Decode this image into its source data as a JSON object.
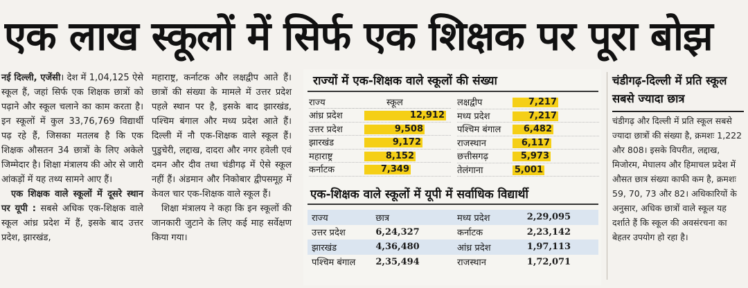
{
  "headline": "एक लाख स्कूलों में सिर्फ एक शिक्षक पर पूरा बोझ",
  "column1": {
    "dateline": "नई दिल्ली, एजेंसी",
    "para1": "। देश में 1,04,125 ऐसे स्कूल हैं, जहां सिर्फ एक शिक्षक छात्रों को पढ़ाने और स्कूल चलाने का काम करता है। इन स्कूलों में कुल 33,76,769 विद्यार्थी पढ़ रहे हैं, जिसका मतलब है कि एक शिक्षक औसतन 34 छात्रों के लिए अकेले जिम्मेदार है। शिक्षा मंत्रालय की ओर से जारी आंकड़ों में यह तथ्य सामने आए हैं।",
    "subhead": "एक शिक्षक वाले स्कूलों में दूसरे स्थान पर यूपी :",
    "para2": "सबसे अधिक एक-शिक्षक वाले स्कूल आंध्र प्रदेश में हैं, इसके बाद उत्तर प्रदेश, झारखंड,"
  },
  "column2": {
    "para1": "महाराष्ट्र, कर्नाटक और लक्षद्वीप आते हैं। छात्रों की संख्या के मामले में उत्तर प्रदेश पहले स्थान पर है, इसके बाद झारखंड, पश्चिम बंगाल और मध्य प्रदेश आते हैं। दिल्ली में नौ एक-शिक्षक वाले स्कूल हैं। पुडुचेरी, लद्दाख, दादरा और नगर हवेली एवं दमन और दीव तथा चंडीगढ़ में ऐसे स्कूल नहीं हैं। अंडमान और निकोबार द्वीपसमूह में केवल चार एक-शिक्षक वाले स्कूल हैं।",
    "para2": "शिक्षा मंत्रालय ने कहा कि इन स्कूलों की जानकारी जुटाने के लिए कई माह सर्वेक्षण किया गया।"
  },
  "chart_data": {
    "type": "bar",
    "title": "राज्यों में एक-शिक्षक वाले स्कूलों की संख्या",
    "left_header": {
      "state": "राज्य",
      "value": "स्कूल"
    },
    "left": [
      {
        "state": "आंध्र प्रदेश",
        "value": 12912,
        "label": "12,912"
      },
      {
        "state": "उत्तर प्रदेश",
        "value": 9508,
        "label": "9,508"
      },
      {
        "state": "झारखंड",
        "value": 9172,
        "label": "9,172"
      },
      {
        "state": "महाराष्ट्र",
        "value": 8152,
        "label": "8,152"
      },
      {
        "state": "कर्नाटक",
        "value": 7349,
        "label": "7,349"
      }
    ],
    "right": [
      {
        "state": "लक्षद्वीप",
        "value": 7217,
        "label": "7,217"
      },
      {
        "state": "मध्य प्रदेश",
        "value": 7217,
        "label": "7,217"
      },
      {
        "state": "पश्चिम बंगाल",
        "value": 6482,
        "label": "6,482"
      },
      {
        "state": "राजस्थान",
        "value": 6117,
        "label": "6,117"
      },
      {
        "state": "छत्तीसगढ़",
        "value": 5973,
        "label": "5,973"
      },
      {
        "state": "तेलंगाना",
        "value": 5001,
        "label": "5,001"
      }
    ],
    "xlim": [
      0,
      12912
    ]
  },
  "students_table": {
    "title": "एक-शिक्षक वाले स्कूलों में यूपी में सर्वाधिक विद्यार्थी",
    "rows": [
      [
        "राज्य",
        "छात्र",
        "मध्य प्रदेश",
        "2,29,095"
      ],
      [
        "उत्तर प्रदेश",
        "6,24,327",
        "कर्नाटक",
        "2,23,142"
      ],
      [
        "झारखंड",
        "4,36,480",
        "आंध्र प्रदेश",
        "1,97,113"
      ],
      [
        "पश्चिम बंगाल",
        "2,35,494",
        "राजस्थान",
        "1,72,071"
      ]
    ]
  },
  "sidebar": {
    "heading": "चंडीगढ़-दिल्ली में प्रति स्कूल सबसे ज्यादा छात्र",
    "body": "चंडीगढ़ और दिल्ली में प्रति स्कूल सबसे ज्यादा छात्रों की संख्या है, क्रमशः 1,222 और 808। इसके विपरीत, लद्दाख, मिजोरम, मेघालय और हिमाचल प्रदेश में औसत छात्र संख्या काफी कम है, क्रमशः 59, 70, 73 और 82। अधिकारियों के अनुसार, अधिक छात्रों वाले स्कूल यह दर्शाते हैं कि स्कूल की अवसंरचना का बेहतर उपयोग हो रहा है।"
  },
  "colors": {
    "bar": "#f5cf16",
    "shade": "#dbe5f0"
  }
}
